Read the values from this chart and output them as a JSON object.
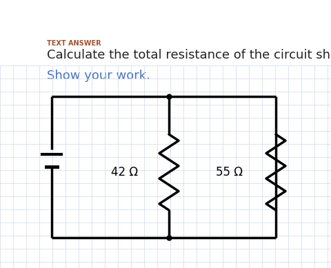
{
  "title_label": "TEXT ANSWER",
  "question": "Calculate the total resistance of the circuit shown below.",
  "subtext": "Show your work.",
  "title_color": "#a0522d",
  "question_color": "#222222",
  "subtext_color": "#4472c4",
  "background_color": "#ffffff",
  "grid_color": "#d0d8e8",
  "circuit_color": "#000000",
  "resistor1_label": "42 Ω",
  "resistor2_label": "55 Ω",
  "lw": 2.5
}
